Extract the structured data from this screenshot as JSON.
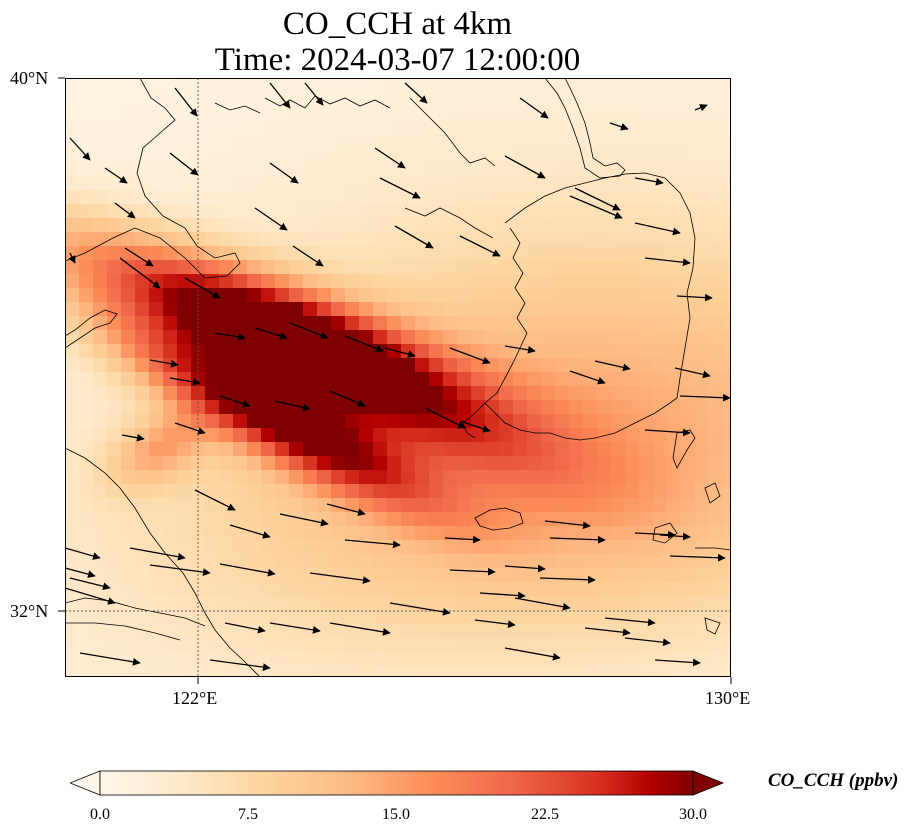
{
  "title": "CO_CCH at 4km",
  "subtitle": "Time: 2024-03-07 12:00:00",
  "axes": {
    "lat_labels": [
      "40°N",
      "32°N"
    ],
    "lon_labels": [
      "122°E",
      "130°E"
    ]
  },
  "colorbar": {
    "label": "CO_CCH (ppbv)",
    "ticks": [
      "0.0",
      "7.5",
      "15.0",
      "22.5",
      "30.0"
    ],
    "min": 0,
    "max": 30,
    "colormap": "OrRd",
    "extend": "both"
  },
  "colors": {
    "low": "#fff7ec",
    "mid": "#fdbb84",
    "high": "#7f0000"
  },
  "chart_data": {
    "type": "heatmap",
    "title": "CO_CCH at 4km",
    "subtitle": "Time: 2024-03-07 12:00:00",
    "variable": "CO_CCH",
    "units": "ppbv",
    "lon_range": [
      120,
      130
    ],
    "lat_range": [
      31,
      40
    ],
    "gridlines": {
      "lon": [
        122,
        130
      ],
      "lat": [
        40,
        32
      ]
    },
    "wind_vectors": "shown (predominantly northwesterly to westerly flow)",
    "plume_peaks": [
      {
        "lon": 122.2,
        "lat": 37.2,
        "value": 28
      },
      {
        "lon": 123.0,
        "lat": 35.0,
        "value": 29
      },
      {
        "lon": 121.3,
        "lat": 34.6,
        "value": 14
      }
    ]
  }
}
